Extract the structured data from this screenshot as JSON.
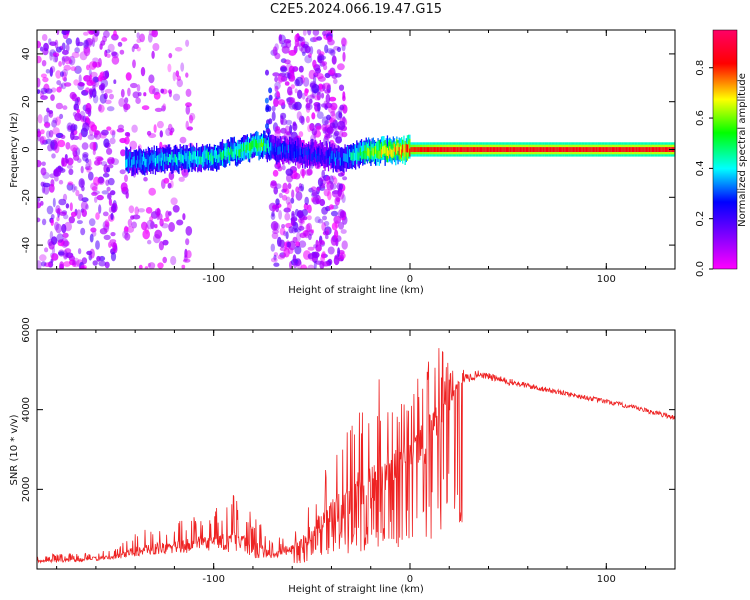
{
  "figure_title": "C2E5.2024.066.19.47.G15",
  "chart_data": [
    {
      "type": "heatmap",
      "xlabel": "Height of straight line (km)",
      "ylabel": "Frequency (Hz)",
      "xlim": [
        -190,
        135
      ],
      "ylim": [
        -50,
        50
      ],
      "xticks": [
        -100,
        0,
        100
      ],
      "yticks": [
        -40,
        -20,
        0,
        20,
        40
      ],
      "colorbar": {
        "label": "Normalized spectral amplitude",
        "range": [
          0.0,
          0.95
        ],
        "ticks": [
          0.0,
          0.2,
          0.4,
          0.6,
          0.8
        ],
        "colormap": [
          "#ff00ff",
          "#7f00ff",
          "#0000ff",
          "#00ffff",
          "#00ff00",
          "#ffff00",
          "#ff0000",
          "#ff0066"
        ]
      },
      "ridge": {
        "points": [
          [
            -145,
            -5
          ],
          [
            -120,
            -4
          ],
          [
            -100,
            -3
          ],
          [
            -85,
            0
          ],
          [
            -76,
            2
          ],
          [
            -70,
            0
          ],
          [
            -50,
            -2
          ],
          [
            -35,
            -4
          ],
          [
            -28,
            -2
          ],
          [
            -20,
            -1
          ],
          [
            0,
            0
          ],
          [
            20,
            0
          ],
          [
            135,
            0
          ]
        ],
        "amplitude": [
          0.35,
          0.4,
          0.45,
          0.5,
          0.55,
          0.3,
          0.25,
          0.3,
          0.45,
          0.6,
          0.8,
          0.85,
          0.85
        ]
      },
      "noise_regions_km": [
        [
          -190,
          -150
        ],
        [
          -148,
          -110
        ],
        [
          -70,
          -33
        ]
      ]
    },
    {
      "type": "line",
      "xlabel": "Height of straight line (km)",
      "ylabel": "SNR (10 * v/v)",
      "xlim": [
        -190,
        135
      ],
      "ylim": [
        0,
        6000
      ],
      "xticks": [
        -100,
        0,
        100
      ],
      "yticks": [
        2000,
        4000,
        6000
      ],
      "color": "#ee2222",
      "envelope": {
        "x": [
          -190,
          -170,
          -150,
          -140,
          -120,
          -100,
          -90,
          -80,
          -70,
          -60,
          -50,
          -40,
          -30,
          -20,
          -10,
          0,
          10,
          20,
          25,
          35,
          50,
          70,
          90,
          110,
          135
        ],
        "base": [
          200,
          220,
          300,
          450,
          550,
          650,
          700,
          500,
          350,
          500,
          900,
          1400,
          1800,
          2200,
          2600,
          2900,
          3300,
          4200,
          4700,
          4900,
          4700,
          4500,
          4300,
          4100,
          3800
        ],
        "peak": [
          350,
          400,
          500,
          1000,
          1200,
          1500,
          1900,
          1400,
          700,
          1000,
          1900,
          2800,
          3800,
          5100,
          4600,
          4000,
          6000,
          5200,
          5000,
          5050,
          4850,
          4600,
          4400,
          4200,
          3900
        ]
      }
    }
  ]
}
